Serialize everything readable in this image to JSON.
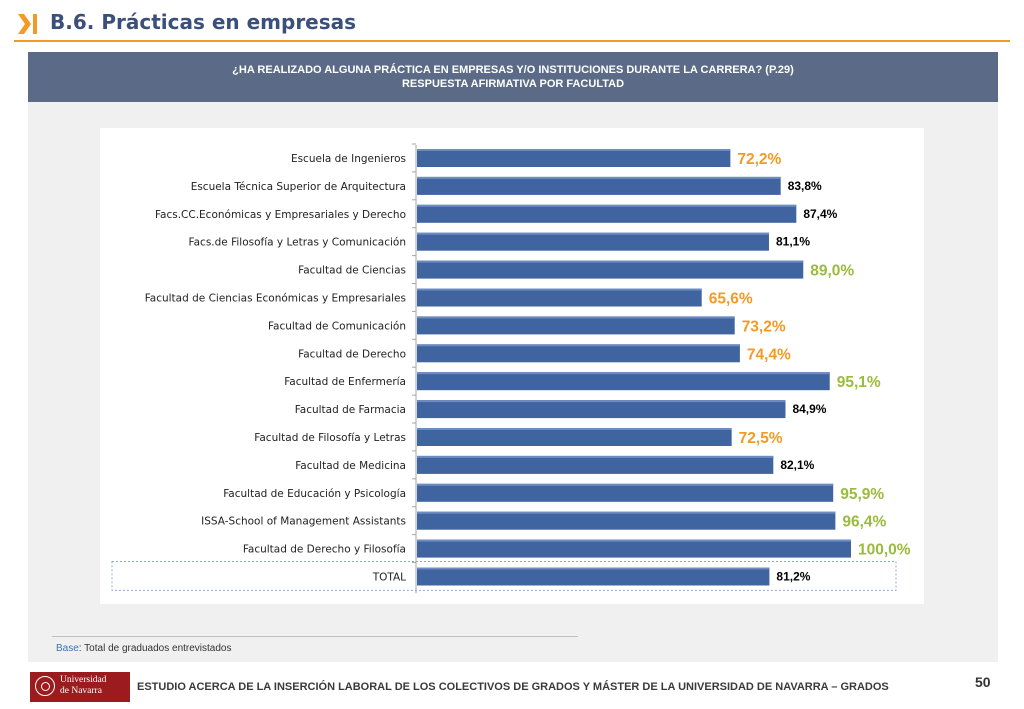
{
  "page": {
    "title": "B.6. Prácticas en empresas",
    "question_line1": "¿HA REALIZADO ALGUNA PRÁCTICA EN EMPRESAS Y/O INSTITUCIONES DURANTE LA CARRERA? (P.29)",
    "question_line2": "RESPUESTA AFIRMATIVA POR FACULTAD",
    "base_label": "Base",
    "base_text": ": Total de graduados entrevistados",
    "logo_line1": "Universidad",
    "logo_line2": "de Navarra",
    "footer_text": "ESTUDIO ACERCA DE LA INSERCIÓN LABORAL DE LOS COLECTIVOS DE GRADOS Y MÁSTER DE LA UNIVERSIDAD DE NAVARRA – GRADOS",
    "page_number": "50"
  },
  "colors": {
    "bar": "#3f64a0",
    "label_low": "#f39a26",
    "label_high": "#9bbb3c",
    "label_mid": "#000000",
    "accent": "#f39a26",
    "header_bg": "#5a6a87"
  },
  "chart_data": {
    "type": "bar",
    "orientation": "horizontal",
    "categories": [
      "Escuela de Ingenieros",
      "Escuela Técnica Superior de Arquitectura",
      "Facs.CC.Económicas y Empresariales y Derecho",
      "Facs.de Filosofía y Letras y Comunicación",
      "Facultad de Ciencias",
      "Facultad de Ciencias Económicas y Empresariales",
      "Facultad de Comunicación",
      "Facultad de Derecho",
      "Facultad de Enfermería",
      "Facultad de Farmacia",
      "Facultad de Filosofía y Letras",
      "Facultad de Medicina",
      "Facultad de Educación y Psicología",
      "ISSA-School of Management Assistants",
      "Facultad de Derecho y Filosofía",
      "TOTAL"
    ],
    "values": [
      72.2,
      83.8,
      87.4,
      81.1,
      89.0,
      65.6,
      73.2,
      74.4,
      95.1,
      84.9,
      72.5,
      82.1,
      95.9,
      96.4,
      100.0,
      81.2
    ],
    "labels": [
      "72,2%",
      "83,8%",
      "87,4%",
      "81,1%",
      "89,0%",
      "65,6%",
      "73,2%",
      "74,4%",
      "95,1%",
      "84,9%",
      "72,5%",
      "82,1%",
      "95,9%",
      "96,4%",
      "100,0%",
      "81,2%"
    ],
    "label_styles": [
      "low",
      "mid",
      "mid",
      "mid",
      "high",
      "low",
      "low",
      "low",
      "high",
      "mid",
      "low",
      "mid",
      "high",
      "high",
      "high",
      "mid"
    ],
    "xlim": [
      0,
      100
    ],
    "title": "",
    "xlabel": "",
    "ylabel": "",
    "grid": false,
    "legend": "none"
  }
}
